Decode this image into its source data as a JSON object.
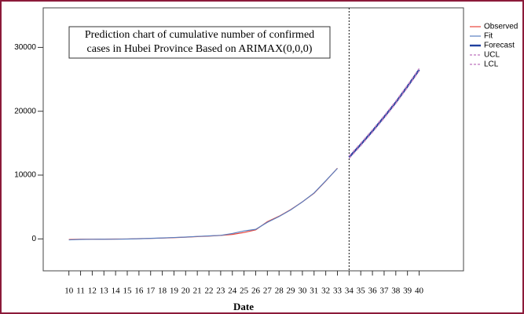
{
  "chart_data": {
    "type": "line",
    "annotation": [
      "Prediction chart of cumulative number of confirmed",
      "cases in Hubei Province Based on ARIMAX(0,0,0)"
    ],
    "xlabel": "Date",
    "x": [
      10,
      11,
      12,
      13,
      14,
      15,
      16,
      17,
      18,
      19,
      20,
      21,
      22,
      23,
      24,
      25,
      26,
      27,
      28,
      29,
      30,
      31,
      32,
      33,
      34,
      35,
      36,
      37,
      38,
      39,
      40
    ],
    "xlim": [
      7.8,
      43.8
    ],
    "xticks": [
      10,
      11,
      12,
      13,
      14,
      15,
      16,
      17,
      18,
      19,
      20,
      21,
      22,
      23,
      24,
      25,
      26,
      27,
      28,
      29,
      30,
      31,
      32,
      33,
      34,
      35,
      36,
      37,
      38,
      39,
      40
    ],
    "ylim": [
      -5000,
      36200
    ],
    "yticks": [
      0,
      10000,
      20000,
      30000
    ],
    "vline_x": 34,
    "legend": "right",
    "series": [
      {
        "name": "Observed",
        "color": "#e8443a",
        "width": 1.2,
        "dashed": false,
        "values": [
          -100,
          -50,
          -40,
          -30,
          -20,
          -10,
          40,
          80,
          130,
          200,
          270,
          370,
          440,
          550,
          700,
          1000,
          1420,
          2700,
          3550,
          4590,
          5810,
          7150,
          9070,
          11080,
          null,
          null,
          null,
          null,
          null,
          null,
          null
        ]
      },
      {
        "name": "Fit",
        "color": "#5a7fc0",
        "width": 1.2,
        "dashed": false,
        "values": [
          -150,
          -80,
          -60,
          -50,
          -40,
          -20,
          30,
          90,
          150,
          220,
          290,
          390,
          470,
          560,
          850,
          1250,
          1500,
          2600,
          3500,
          4550,
          5800,
          7200,
          9100,
          11050,
          null,
          null,
          null,
          null,
          null,
          null,
          null
        ]
      },
      {
        "name": "Forecast",
        "color": "#1f3f9e",
        "width": 2.4,
        "dashed": false,
        "values": [
          null,
          null,
          null,
          null,
          null,
          null,
          null,
          null,
          null,
          null,
          null,
          null,
          null,
          null,
          null,
          null,
          null,
          null,
          null,
          null,
          null,
          null,
          null,
          null,
          12800,
          14800,
          16900,
          19100,
          21400,
          23900,
          26500
        ]
      },
      {
        "name": "UCL",
        "color": "#c98ac8",
        "width": 1.4,
        "dashed": true,
        "values": [
          null,
          null,
          null,
          null,
          null,
          null,
          null,
          null,
          null,
          null,
          null,
          null,
          null,
          null,
          null,
          null,
          null,
          null,
          null,
          null,
          null,
          null,
          null,
          null,
          13000,
          15000,
          17100,
          19300,
          21600,
          24100,
          26700
        ]
      },
      {
        "name": "LCL",
        "color": "#c98ac8",
        "width": 1.4,
        "dashed": true,
        "values": [
          null,
          null,
          null,
          null,
          null,
          null,
          null,
          null,
          null,
          null,
          null,
          null,
          null,
          null,
          null,
          null,
          null,
          null,
          null,
          null,
          null,
          null,
          null,
          null,
          12600,
          14600,
          16700,
          18900,
          21200,
          23700,
          26300
        ]
      }
    ]
  }
}
